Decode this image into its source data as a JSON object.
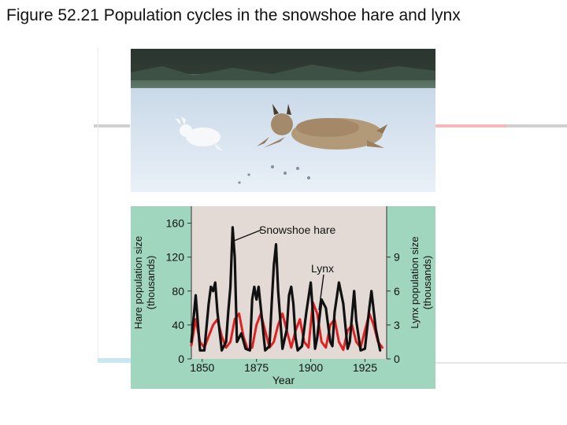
{
  "page": {
    "title": "Figure 52.21 Population cycles in the snowshoe hare and lynx"
  },
  "colors": {
    "panel_bg": "#9fd6bd",
    "plot_bg": "#e3dad5",
    "hare": "#111111",
    "lynx": "#dd2222",
    "snow": "#e6eef7",
    "sky": "#9bb6cb"
  },
  "chart_data": {
    "type": "line",
    "title": "",
    "xlabel": "Year",
    "ylabel_left": "Hare population size (thousands)",
    "ylabel_right": "Lynx population size (thousands)",
    "xlim": [
      1845,
      1935
    ],
    "ylim_left": [
      0,
      180
    ],
    "ylim_right": [
      0,
      13.5
    ],
    "x_ticks": [
      "1850",
      "1875",
      "1900",
      "1925"
    ],
    "y_ticks_left": [
      "0",
      "40",
      "80",
      "120",
      "160"
    ],
    "y_ticks_right": [
      "0",
      "3",
      "6",
      "9"
    ],
    "annotations": [
      "Snowshoe hare",
      "Lynx"
    ],
    "series": [
      {
        "name": "Snowshoe hare",
        "axis": "left",
        "x": [
          1845,
          1847,
          1849,
          1851,
          1853,
          1854,
          1855,
          1856,
          1857,
          1859,
          1861,
          1862,
          1863,
          1864,
          1865,
          1866,
          1868,
          1870,
          1872,
          1873,
          1874,
          1875,
          1876,
          1877,
          1879,
          1881,
          1882,
          1883,
          1884,
          1885,
          1887,
          1889,
          1890,
          1891,
          1892,
          1893,
          1894,
          1896,
          1898,
          1900,
          1901,
          1902,
          1903,
          1905,
          1907,
          1909,
          1910,
          1911,
          1913,
          1915,
          1917,
          1918,
          1919,
          1920,
          1921,
          1923,
          1925,
          1927,
          1928,
          1930,
          1932
        ],
        "y": [
          20,
          75,
          10,
          10,
          65,
          85,
          80,
          90,
          55,
          10,
          20,
          55,
          85,
          155,
          120,
          20,
          30,
          12,
          10,
          70,
          85,
          70,
          85,
          60,
          10,
          15,
          65,
          110,
          135,
          80,
          12,
          35,
          75,
          85,
          65,
          25,
          10,
          15,
          55,
          90,
          55,
          12,
          25,
          70,
          60,
          20,
          15,
          55,
          90,
          65,
          12,
          20,
          50,
          80,
          45,
          10,
          12,
          60,
          80,
          35,
          10
        ]
      },
      {
        "name": "Lynx",
        "axis": "right",
        "x": [
          1845,
          1847,
          1849,
          1851,
          1853,
          1855,
          1857,
          1859,
          1861,
          1863,
          1865,
          1867,
          1869,
          1871,
          1873,
          1875,
          1877,
          1879,
          1881,
          1883,
          1885,
          1887,
          1889,
          1891,
          1893,
          1895,
          1897,
          1899,
          1901,
          1903,
          1905,
          1907,
          1909,
          1911,
          1913,
          1915,
          1917,
          1919,
          1921,
          1923,
          1925,
          1927,
          1929,
          1931,
          1933
        ],
        "y": [
          1.2,
          3.5,
          1.5,
          1.0,
          2.0,
          3.0,
          3.5,
          2.0,
          1.0,
          1.5,
          3.5,
          4.0,
          2.0,
          0.8,
          1.0,
          3.0,
          4.0,
          2.5,
          1.0,
          1.5,
          3.0,
          4.0,
          2.5,
          1.0,
          2.5,
          3.5,
          1.5,
          1.0,
          5.0,
          4.0,
          1.5,
          1.0,
          3.0,
          3.5,
          1.5,
          0.8,
          2.5,
          3.0,
          1.5,
          1.0,
          2.5,
          4.0,
          3.0,
          1.5,
          1.0
        ]
      }
    ]
  }
}
